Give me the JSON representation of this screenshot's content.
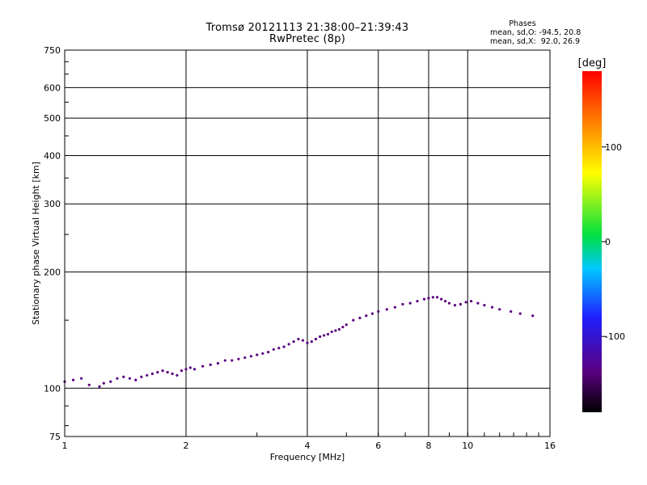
{
  "chart_data": {
    "type": "scatter",
    "title": "Tromsø 20121113 21:38:00–21:39:43",
    "subtitle": "RwPretec (8p)",
    "xlabel": "Frequency [MHz]",
    "ylabel": "Stationary phase Virtual Height [km]",
    "x_scale": "log",
    "y_scale": "log",
    "xlim": [
      1,
      16
    ],
    "ylim": [
      75,
      750
    ],
    "x_ticks": [
      1,
      2,
      4,
      6,
      8,
      10,
      16
    ],
    "y_ticks": [
      75,
      100,
      200,
      300,
      400,
      500,
      600,
      750
    ],
    "grid": true,
    "colorbar": {
      "label": "[deg]",
      "range": [
        -180,
        180
      ],
      "ticks": [
        100,
        0,
        -100
      ],
      "colors": [
        "#000000",
        "#5a0080",
        "#2020ff",
        "#00c8ff",
        "#00e040",
        "#ffff00",
        "#ff8000",
        "#ff0000"
      ]
    },
    "stats": {
      "header": "Phases",
      "line1": "mean, sd,O: -94.5, 20.8",
      "line2": "mean, sd,X:  92.0, 26.9"
    },
    "series": [
      {
        "x": [
          1.0,
          1.05,
          1.1,
          1.15,
          1.22,
          1.25,
          1.3,
          1.35,
          1.4,
          1.45,
          1.5,
          1.55,
          1.6,
          1.65,
          1.7,
          1.75,
          1.8,
          1.85,
          1.9,
          1.95,
          2.0,
          2.05,
          2.1,
          2.2,
          2.3,
          2.4,
          2.5,
          2.6,
          2.7,
          2.8,
          2.9,
          3.0,
          3.1,
          3.2,
          3.3,
          3.4,
          3.5,
          3.6,
          3.7,
          3.8,
          3.9,
          4.0,
          4.1,
          4.2,
          4.3,
          4.4,
          4.5,
          4.6,
          4.7,
          4.8,
          4.9,
          5.0,
          5.2,
          5.4,
          5.6,
          5.8,
          6.0,
          6.3,
          6.6,
          6.9,
          7.2,
          7.5,
          7.8,
          8.0,
          8.2,
          8.4,
          8.6,
          8.8,
          9.0,
          9.3,
          9.6,
          9.9,
          10.2,
          10.6,
          11.0,
          11.5,
          12.0,
          12.8,
          13.5,
          14.5
        ],
        "y": [
          104,
          105,
          106,
          102,
          101,
          103,
          104,
          106,
          107,
          106,
          105,
          107,
          108,
          109,
          110,
          111,
          110,
          109,
          108,
          111,
          112,
          113,
          112,
          114,
          115,
          116,
          118,
          118,
          119,
          120,
          121,
          122,
          123,
          124,
          126,
          127,
          128,
          130,
          132,
          134,
          133,
          131,
          132,
          134,
          136,
          137,
          138,
          140,
          141,
          142,
          144,
          146,
          150,
          152,
          154,
          156,
          158,
          160,
          162,
          165,
          166,
          168,
          170,
          171,
          172,
          172,
          170,
          168,
          166,
          164,
          165,
          167,
          168,
          166,
          164,
          162,
          160,
          158,
          156,
          154
        ],
        "color_value": -100
      }
    ]
  }
}
